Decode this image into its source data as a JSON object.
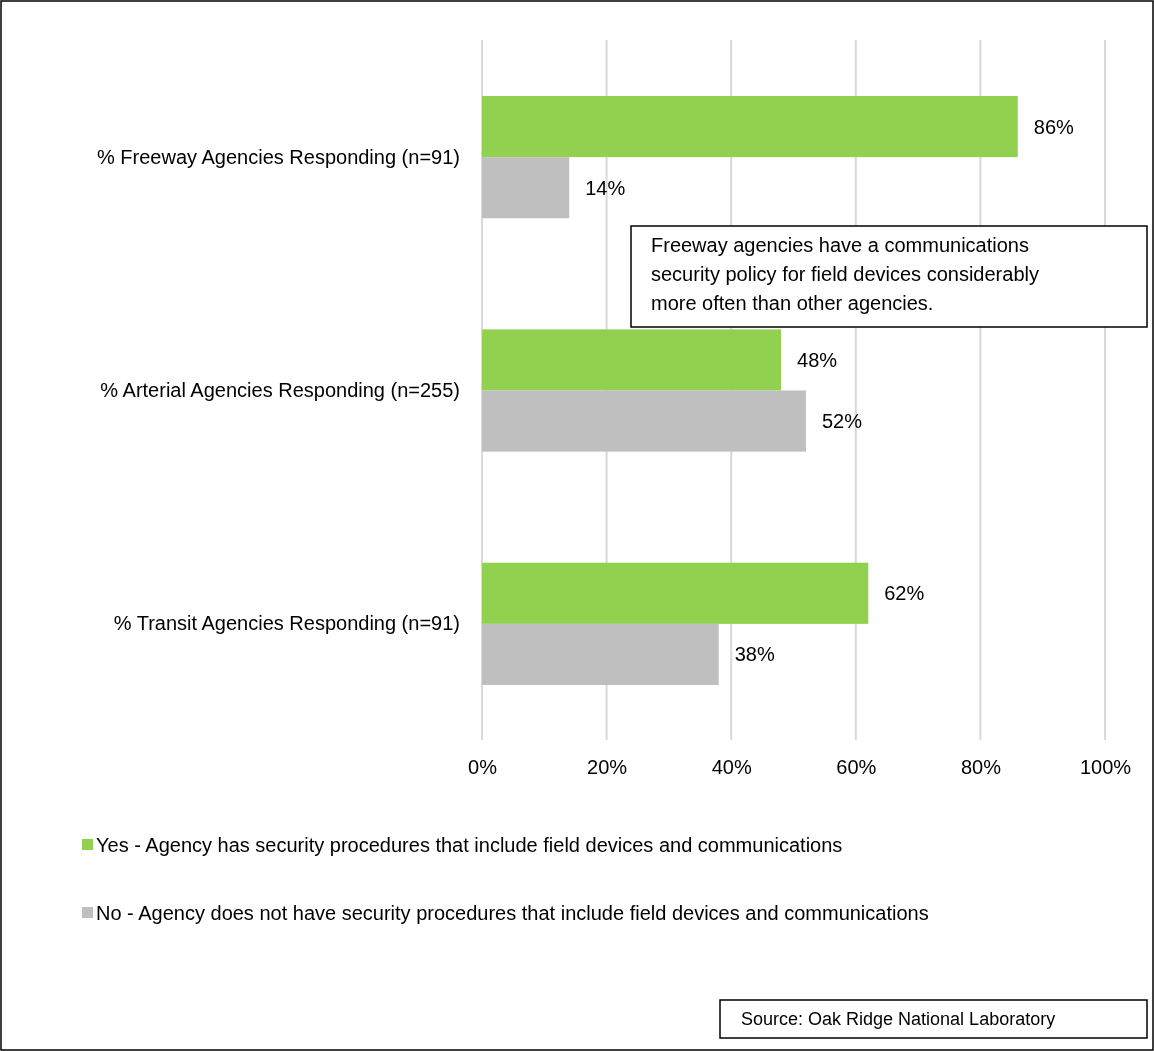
{
  "chart_data": {
    "type": "bar",
    "orientation": "horizontal",
    "categories": [
      "% Freeway Agencies Responding (n=91)",
      "% Arterial Agencies Responding (n=255)",
      "% Transit Agencies Responding (n=91)"
    ],
    "series": [
      {
        "name": "Yes - Agency has security procedures that include field devices and communications",
        "color": "#92d050",
        "values": [
          86,
          48,
          62
        ],
        "value_labels": [
          "86%",
          "48%",
          "62%"
        ]
      },
      {
        "name": "No - Agency does not have security procedures that include field devices and communications",
        "color": "#bfbfbf",
        "values": [
          14,
          52,
          38
        ],
        "value_labels": [
          "14%",
          "52%",
          "38%"
        ]
      }
    ],
    "xlim": [
      0,
      100
    ],
    "xticks": [
      {
        "value": 0,
        "label": "0%"
      },
      {
        "value": 20,
        "label": "20%"
      },
      {
        "value": 40,
        "label": "40%"
      },
      {
        "value": 60,
        "label": "60%"
      },
      {
        "value": 80,
        "label": "80%"
      },
      {
        "value": 100,
        "label": "100%"
      }
    ],
    "grid": "x",
    "legend": "bottom",
    "annotations": [
      "Freeway agencies have a communications security policy for field devices considerably more often than other agencies.",
      "Source:  Oak Ridge National Laboratory"
    ]
  }
}
